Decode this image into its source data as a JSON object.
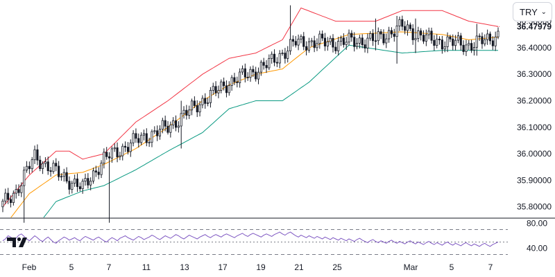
{
  "currency_select": {
    "value": "TRY",
    "chevron_icon": "chevron-down-icon"
  },
  "logo_icon": "tradingview-logo-icon",
  "colors": {
    "candle_up": "#ffffff",
    "candle_down": "#131722",
    "candle_border": "#131722",
    "upper_band": "#f23645",
    "middle_band": "#ff9800",
    "lower_band": "#089981",
    "rsi_line": "#7e57c2",
    "rsi_levels": "#787b86",
    "divider": "#131722"
  },
  "chart_data": [
    {
      "type": "candlestick",
      "title": "",
      "indicator": "Bollinger Bands",
      "x_tick_labels": [
        "Feb",
        "5",
        "7",
        "11",
        "13",
        "17",
        "19",
        "21",
        "25",
        "Mar",
        "5",
        "7"
      ],
      "y_tick_labels": [
        "35.80000",
        "35.90000",
        "36.00000",
        "36.10000",
        "36.20000",
        "36.30000",
        "36.40000",
        "36.50000"
      ],
      "ylim": [
        35.76,
        36.58
      ],
      "last_price_label": "36.47979",
      "last_price": 36.47979,
      "grid": false,
      "close_anchors": [
        [
          0,
          35.81
        ],
        [
          5,
          35.86
        ],
        [
          12,
          35.99
        ],
        [
          20,
          35.93
        ],
        [
          30,
          35.87
        ],
        [
          38,
          35.98
        ],
        [
          50,
          36.05
        ],
        [
          62,
          36.1
        ],
        [
          75,
          36.2
        ],
        [
          85,
          36.27
        ],
        [
          92,
          36.3
        ],
        [
          100,
          36.34
        ],
        [
          110,
          36.42
        ],
        [
          125,
          36.42
        ],
        [
          140,
          36.43
        ],
        [
          150,
          36.48
        ],
        [
          160,
          36.43
        ],
        [
          168,
          36.42
        ],
        [
          175,
          36.41
        ],
        [
          182,
          36.43
        ],
        [
          186,
          36.45
        ]
      ],
      "upper_band_points": [
        [
          0,
          35.8
        ],
        [
          10,
          35.92
        ],
        [
          20,
          36.01
        ],
        [
          25,
          36.01
        ],
        [
          30,
          35.98
        ],
        [
          38,
          36.0
        ],
        [
          50,
          36.12
        ],
        [
          62,
          36.2
        ],
        [
          75,
          36.3
        ],
        [
          85,
          36.36
        ],
        [
          95,
          36.38
        ],
        [
          105,
          36.43
        ],
        [
          112,
          36.55
        ],
        [
          125,
          36.5
        ],
        [
          140,
          36.5
        ],
        [
          150,
          36.54
        ],
        [
          165,
          36.54
        ],
        [
          175,
          36.5
        ],
        [
          186,
          36.48
        ]
      ],
      "middle_band_points": [
        [
          0,
          35.72
        ],
        [
          10,
          35.85
        ],
        [
          20,
          35.92
        ],
        [
          30,
          35.93
        ],
        [
          38,
          35.96
        ],
        [
          50,
          36.02
        ],
        [
          62,
          36.1
        ],
        [
          75,
          36.2
        ],
        [
          85,
          36.26
        ],
        [
          95,
          36.3
        ],
        [
          105,
          36.32
        ],
        [
          115,
          36.4
        ],
        [
          130,
          36.45
        ],
        [
          150,
          36.46
        ],
        [
          165,
          36.45
        ],
        [
          175,
          36.43
        ],
        [
          186,
          36.44
        ]
      ],
      "lower_band_points": [
        [
          0,
          35.58
        ],
        [
          10,
          35.69
        ],
        [
          20,
          35.82
        ],
        [
          30,
          35.86
        ],
        [
          38,
          35.88
        ],
        [
          50,
          35.94
        ],
        [
          62,
          36.01
        ],
        [
          75,
          36.08
        ],
        [
          85,
          36.17
        ],
        [
          95,
          36.2
        ],
        [
          105,
          36.2
        ],
        [
          115,
          36.27
        ],
        [
          130,
          36.41
        ],
        [
          150,
          36.38
        ],
        [
          165,
          36.39
        ],
        [
          175,
          36.39
        ],
        [
          186,
          36.39
        ]
      ],
      "wick_spikes": [
        [
          8,
          35.74,
          35.9
        ],
        [
          40,
          35.74,
          35.99
        ],
        [
          67,
          36.02,
          36.2
        ],
        [
          108,
          36.38,
          36.56
        ],
        [
          140,
          36.39,
          36.51
        ],
        [
          148,
          36.34,
          36.52
        ],
        [
          155,
          36.38,
          36.51
        ],
        [
          178,
          36.37,
          36.49
        ]
      ]
    },
    {
      "type": "line",
      "title": "",
      "indicator": "RSI",
      "y_tick_labels": [
        "80.00",
        "40.00"
      ],
      "ylim": [
        25,
        85
      ],
      "levels": [
        70,
        50,
        30
      ],
      "values": [
        52,
        55,
        60,
        58,
        54,
        56,
        61,
        63,
        59,
        55,
        52,
        56,
        60,
        57,
        53,
        51,
        55,
        58,
        54,
        50,
        48,
        52,
        55,
        58,
        56,
        53,
        55,
        57,
        54,
        52,
        56,
        59,
        57,
        55,
        53,
        56,
        58,
        55,
        52,
        50,
        54,
        57,
        55,
        52,
        56,
        58,
        60,
        57,
        55,
        53,
        56,
        59,
        57,
        54,
        56,
        58,
        61,
        59,
        56,
        54,
        57,
        60,
        58,
        56,
        59,
        62,
        60,
        57,
        55,
        58,
        61,
        59,
        57,
        55,
        58,
        60,
        62,
        59,
        57,
        60,
        62,
        60,
        58,
        61,
        63,
        61,
        59,
        57,
        60,
        62,
        64,
        61,
        59,
        62,
        64,
        62,
        60,
        58,
        61,
        63,
        61,
        59,
        62,
        64,
        66,
        63,
        61,
        64,
        66,
        63,
        60,
        58,
        61,
        59,
        57,
        60,
        58,
        56,
        59,
        57,
        55,
        58,
        56,
        54,
        57,
        55,
        53,
        56,
        54,
        52,
        55,
        53,
        51,
        54,
        56,
        53,
        51,
        49,
        52,
        54,
        51,
        49,
        52,
        50,
        48,
        51,
        53,
        50,
        48,
        51,
        49,
        47,
        50,
        52,
        49,
        47,
        50,
        48,
        46,
        49,
        51,
        48,
        46,
        49,
        47,
        45,
        48,
        50,
        47,
        45,
        48,
        46,
        44,
        47,
        49,
        46,
        44,
        47,
        45,
        43,
        46,
        48,
        45,
        43,
        46,
        48,
        50
      ]
    }
  ]
}
